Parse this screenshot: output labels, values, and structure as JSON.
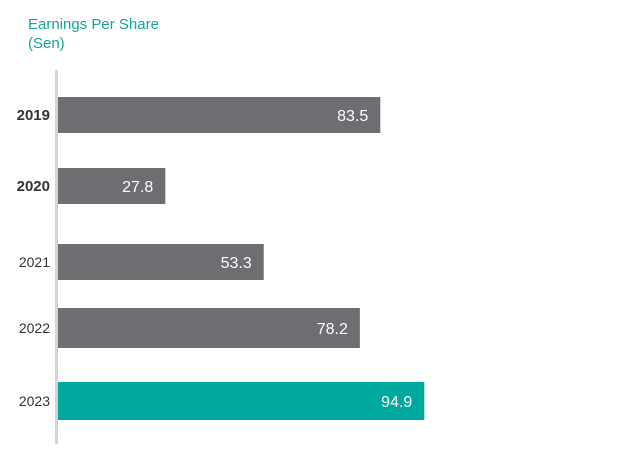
{
  "chart_data": {
    "type": "bar",
    "orientation": "horizontal",
    "title_lines": [
      "Earnings Per Share",
      "(Sen)"
    ],
    "categories": [
      "2019",
      "2020",
      "2021",
      "2022",
      "2023"
    ],
    "values": [
      83.5,
      27.8,
      53.3,
      78.2,
      94.9
    ],
    "value_labels": [
      "83.5",
      "27.8",
      "53.3",
      "78.2",
      "94.9"
    ],
    "xlim": [
      0,
      100
    ],
    "grid": false,
    "legend": "none",
    "colors": {
      "default_bar": "#6d6e71",
      "highlight_bar": "#00a99d",
      "title": "#17a398",
      "axis": "#d4d4d4"
    },
    "highlight_category": "2023"
  }
}
